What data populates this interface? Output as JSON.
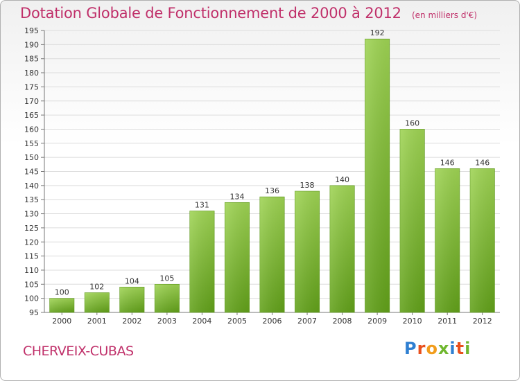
{
  "header": {
    "title": "Dotation Globale de Fonctionnement de 2000 à 2012",
    "subtitle": "(en milliers d'€)"
  },
  "footer": {
    "commune": "CHERVEIX-CUBAS",
    "logo_text": "Proxiti"
  },
  "colors": {
    "title": "#c0306a",
    "bar_top": "#9fd454",
    "bar_bottom": "#62a11a",
    "logo_letters": [
      "#2f7fd1",
      "#e9501d",
      "#f29d1c",
      "#6fb72e",
      "#2f7fd1",
      "#e9501d",
      "#6fb72e"
    ]
  },
  "chart_data": {
    "type": "bar",
    "title": "Dotation Globale de Fonctionnement de 2000 à 2012",
    "subtitle": "(en milliers d'€)",
    "categories": [
      "2000",
      "2001",
      "2002",
      "2003",
      "2004",
      "2005",
      "2006",
      "2007",
      "2008",
      "2009",
      "2010",
      "2011",
      "2012"
    ],
    "values": [
      100,
      102,
      104,
      105,
      131,
      134,
      136,
      138,
      140,
      192,
      160,
      146,
      146
    ],
    "ylim": [
      95,
      195
    ],
    "yticks": [
      95,
      100,
      105,
      110,
      115,
      120,
      125,
      130,
      135,
      140,
      145,
      150,
      155,
      160,
      165,
      170,
      175,
      180,
      185,
      190,
      195
    ],
    "grid": true,
    "xlabel": "",
    "ylabel": ""
  }
}
